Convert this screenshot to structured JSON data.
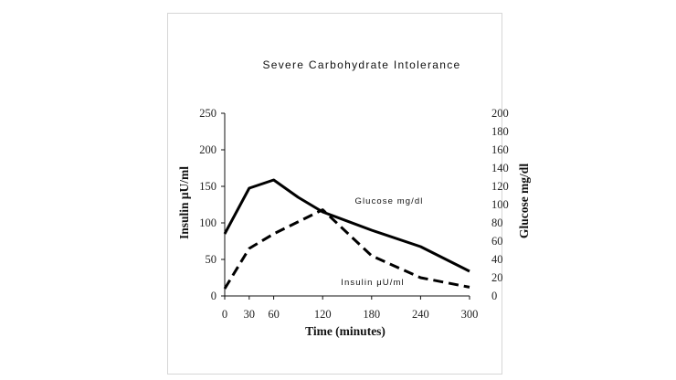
{
  "chart_data": {
    "type": "line",
    "title": "Severe Carbohydrate Intolerance",
    "xlabel": "Time (minutes)",
    "ylabel_left": "Insulin μU/ml",
    "ylabel_right": "Glucose mg/dl",
    "x_ticks": [
      0,
      30,
      60,
      120,
      180,
      240,
      300
    ],
    "ylim_left": [
      0,
      250
    ],
    "y_ticks_left": [
      0,
      50,
      100,
      150,
      200,
      250
    ],
    "ylim_right": [
      0,
      200
    ],
    "y_ticks_right": [
      0,
      20,
      40,
      60,
      80,
      100,
      120,
      140,
      160,
      180,
      200
    ],
    "series": [
      {
        "name": "Glucose mg/dl",
        "axis": "right",
        "style": "solid",
        "label": "Glucose mg/dl",
        "x": [
          0,
          30,
          60,
          90,
          120,
          180,
          240,
          300
        ],
        "values": [
          68,
          118,
          127,
          108,
          92,
          72,
          54,
          27
        ]
      },
      {
        "name": "Insulin μU/ml",
        "axis": "left",
        "style": "dashed",
        "label": "Insulin μU/ml",
        "x": [
          0,
          30,
          60,
          120,
          180,
          240,
          300
        ],
        "values": [
          10,
          65,
          85,
          118,
          55,
          25,
          12
        ]
      }
    ]
  }
}
